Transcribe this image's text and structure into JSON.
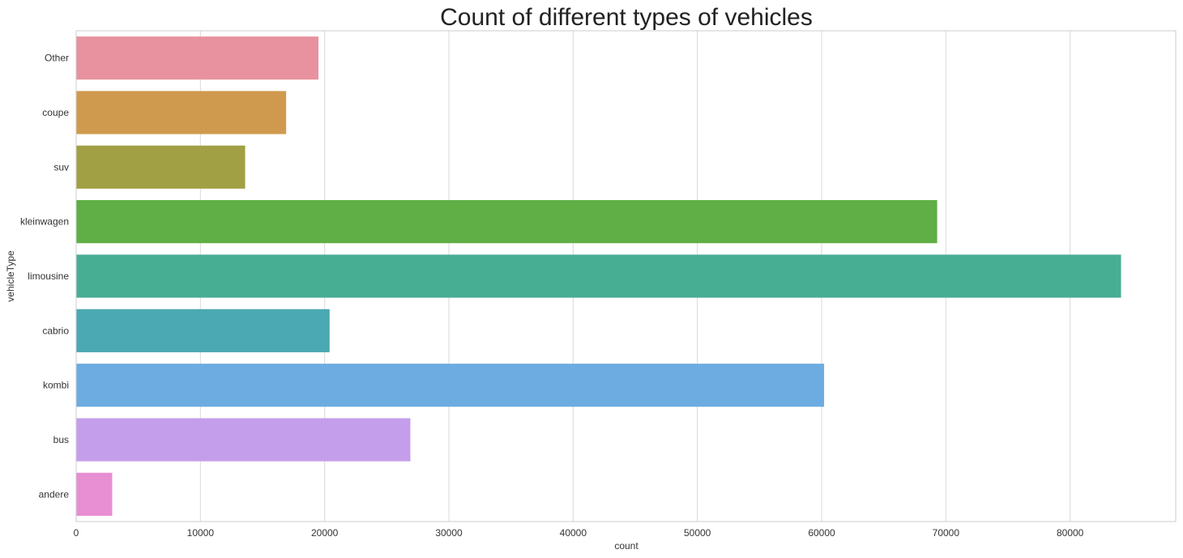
{
  "chart_data": {
    "type": "bar",
    "orientation": "horizontal",
    "title": "Count of different types of vehicles",
    "xlabel": "count",
    "ylabel": "vehicleType",
    "categories": [
      "Other",
      "coupe",
      "suv",
      "kleinwagen",
      "limousine",
      "cabrio",
      "kombi",
      "bus",
      "andere"
    ],
    "values": [
      19500,
      16900,
      13600,
      69300,
      84100,
      20400,
      60200,
      26900,
      2900
    ],
    "colors": [
      "#e8929f",
      "#d09a4e",
      "#a2a044",
      "#5fae46",
      "#48ae93",
      "#4aa9b2",
      "#6cace0",
      "#c49eeb",
      "#e88fd3"
    ],
    "xlim": [
      0,
      88500
    ],
    "xticks": [
      0,
      10000,
      20000,
      30000,
      40000,
      50000,
      60000,
      70000,
      80000
    ],
    "xtick_labels": [
      "0",
      "10000",
      "20000",
      "30000",
      "40000",
      "50000",
      "60000",
      "70000",
      "80000"
    ],
    "grid": true
  }
}
